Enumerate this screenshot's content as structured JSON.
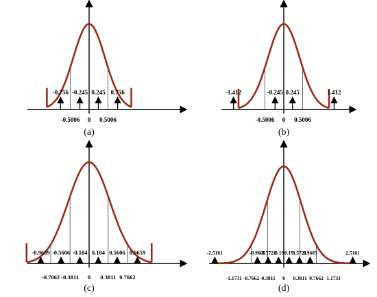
{
  "panels": [
    {
      "id": "a",
      "caption": "(a)",
      "reconstruction_levels": [
        "-0.756",
        "-0.245",
        "0.245",
        "0.756"
      ],
      "decision_boundaries": [
        "-0.5006",
        "0",
        "0.5006"
      ],
      "level_values": [
        -0.756,
        -0.245,
        0.245,
        0.756
      ],
      "boundary_values": [
        -0.5006,
        0,
        0.5006
      ]
    },
    {
      "id": "b",
      "caption": "(b)",
      "reconstruction_levels": [
        "-1.412",
        "-0.245",
        "0.245",
        "1.412"
      ],
      "decision_boundaries": [
        "-0.5006",
        "0",
        "0.5006"
      ],
      "level_values": [
        -1.412,
        -0.245,
        0.245,
        1.412
      ],
      "boundary_values": [
        -0.5006,
        0,
        0.5006
      ]
    },
    {
      "id": "c",
      "caption": "(c)",
      "reconstruction_levels": [
        "-0.9659",
        "-0.5606",
        "-0.184",
        "0.184",
        "0.5606",
        "0.9659"
      ],
      "decision_boundaries": [
        "-0.7662",
        "-0.3811",
        "0",
        "0.3811",
        "0.7662"
      ],
      "level_values": [
        -0.9659,
        -0.5606,
        -0.184,
        0.184,
        0.5606,
        0.9659
      ],
      "boundary_values": [
        -0.7662,
        -0.3811,
        0,
        0.3811,
        0.7662
      ]
    },
    {
      "id": "d",
      "caption": "(d)",
      "reconstruction_levels": [
        "-2.5161",
        "-0.9605",
        "-0.5721",
        "-0.19",
        "0.19",
        "0.5721",
        "0.9605",
        "2.5161"
      ],
      "decision_boundaries": [
        "-1.1731",
        "-0.7662",
        "-0.3811",
        "0",
        "0.3811",
        "0.7662",
        "1.1731"
      ],
      "level_values": [
        -2.5161,
        -0.9605,
        -0.5721,
        -0.19,
        0.19,
        0.5721,
        0.9605,
        2.5161
      ],
      "boundary_values": [
        -1.1731,
        -0.7662,
        -0.3811,
        0,
        0.3811,
        0.7662,
        1.1731
      ]
    }
  ],
  "colors": {
    "curve": "#9b2a1a",
    "axis": "#000000",
    "divider": "#444444"
  }
}
